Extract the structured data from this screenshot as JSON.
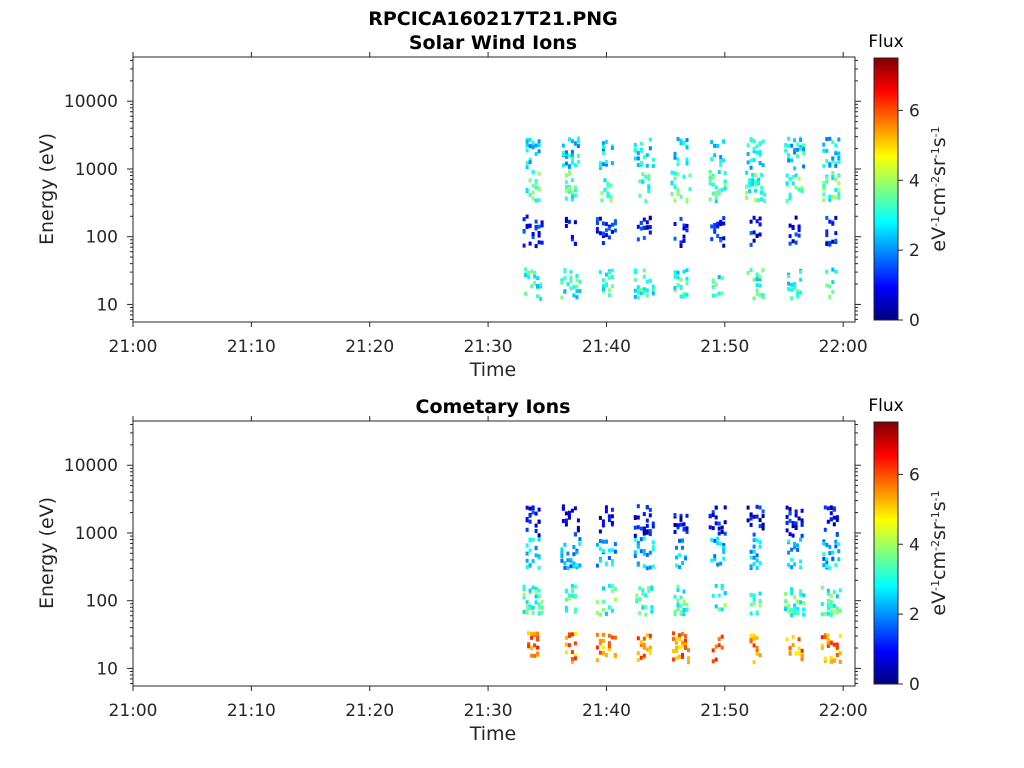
{
  "figure": {
    "title": "RPCICA160217T21.PNG"
  },
  "chart_data": [
    {
      "type": "heatmap",
      "title": "Solar Wind Ions",
      "xlabel": "Time",
      "ylabel": "Energy (eV)",
      "x_ticks": [
        "21:00",
        "21:10",
        "21:20",
        "21:30",
        "21:40",
        "21:50",
        "22:00"
      ],
      "y_ticks": [
        "10",
        "100",
        "1000",
        "10000"
      ],
      "y_scale": "log",
      "ylim": [
        5.5,
        45000
      ],
      "xlim_minutes": [
        0,
        61
      ],
      "colorbar": {
        "title": "Flux",
        "label": "eV-1cm-2sr-1s-1",
        "ticks": [
          "0",
          "2",
          "4",
          "6"
        ],
        "range": [
          0,
          7.5
        ],
        "colormap": "jet"
      },
      "data_start": "21:32",
      "bursts_minutes": [
        33.8,
        37.0,
        40.0,
        43.2,
        46.3,
        49.4,
        52.6,
        55.9,
        59.0
      ],
      "bands": [
        {
          "energy_eV": 20,
          "level": 3.0
        },
        {
          "energy_eV": 120,
          "level": 1.0
        },
        {
          "energy_eV": 550,
          "level": 3.3
        },
        {
          "energy_eV": 1700,
          "level": 2.6
        }
      ]
    },
    {
      "type": "heatmap",
      "title": "Cometary Ions",
      "xlabel": "Time",
      "ylabel": "Energy (eV)",
      "x_ticks": [
        "21:00",
        "21:10",
        "21:20",
        "21:30",
        "21:40",
        "21:50",
        "22:00"
      ],
      "y_ticks": [
        "10",
        "100",
        "1000",
        "10000"
      ],
      "y_scale": "log",
      "ylim": [
        5.5,
        45000
      ],
      "xlim_minutes": [
        0,
        61
      ],
      "colorbar": {
        "title": "Flux",
        "label": "eV-1cm-2sr-1s-1",
        "ticks": [
          "0",
          "2",
          "4",
          "6"
        ],
        "range": [
          0,
          7.5
        ],
        "colormap": "jet"
      },
      "data_start": "21:32",
      "bursts_minutes": [
        33.8,
        37.0,
        40.0,
        43.2,
        46.3,
        49.4,
        52.6,
        55.9,
        59.0
      ],
      "bands": [
        {
          "energy_eV": 20,
          "level": 5.6
        },
        {
          "energy_eV": 100,
          "level": 3.2
        },
        {
          "energy_eV": 500,
          "level": 2.3
        },
        {
          "energy_eV": 1500,
          "level": 0.8
        }
      ]
    }
  ]
}
